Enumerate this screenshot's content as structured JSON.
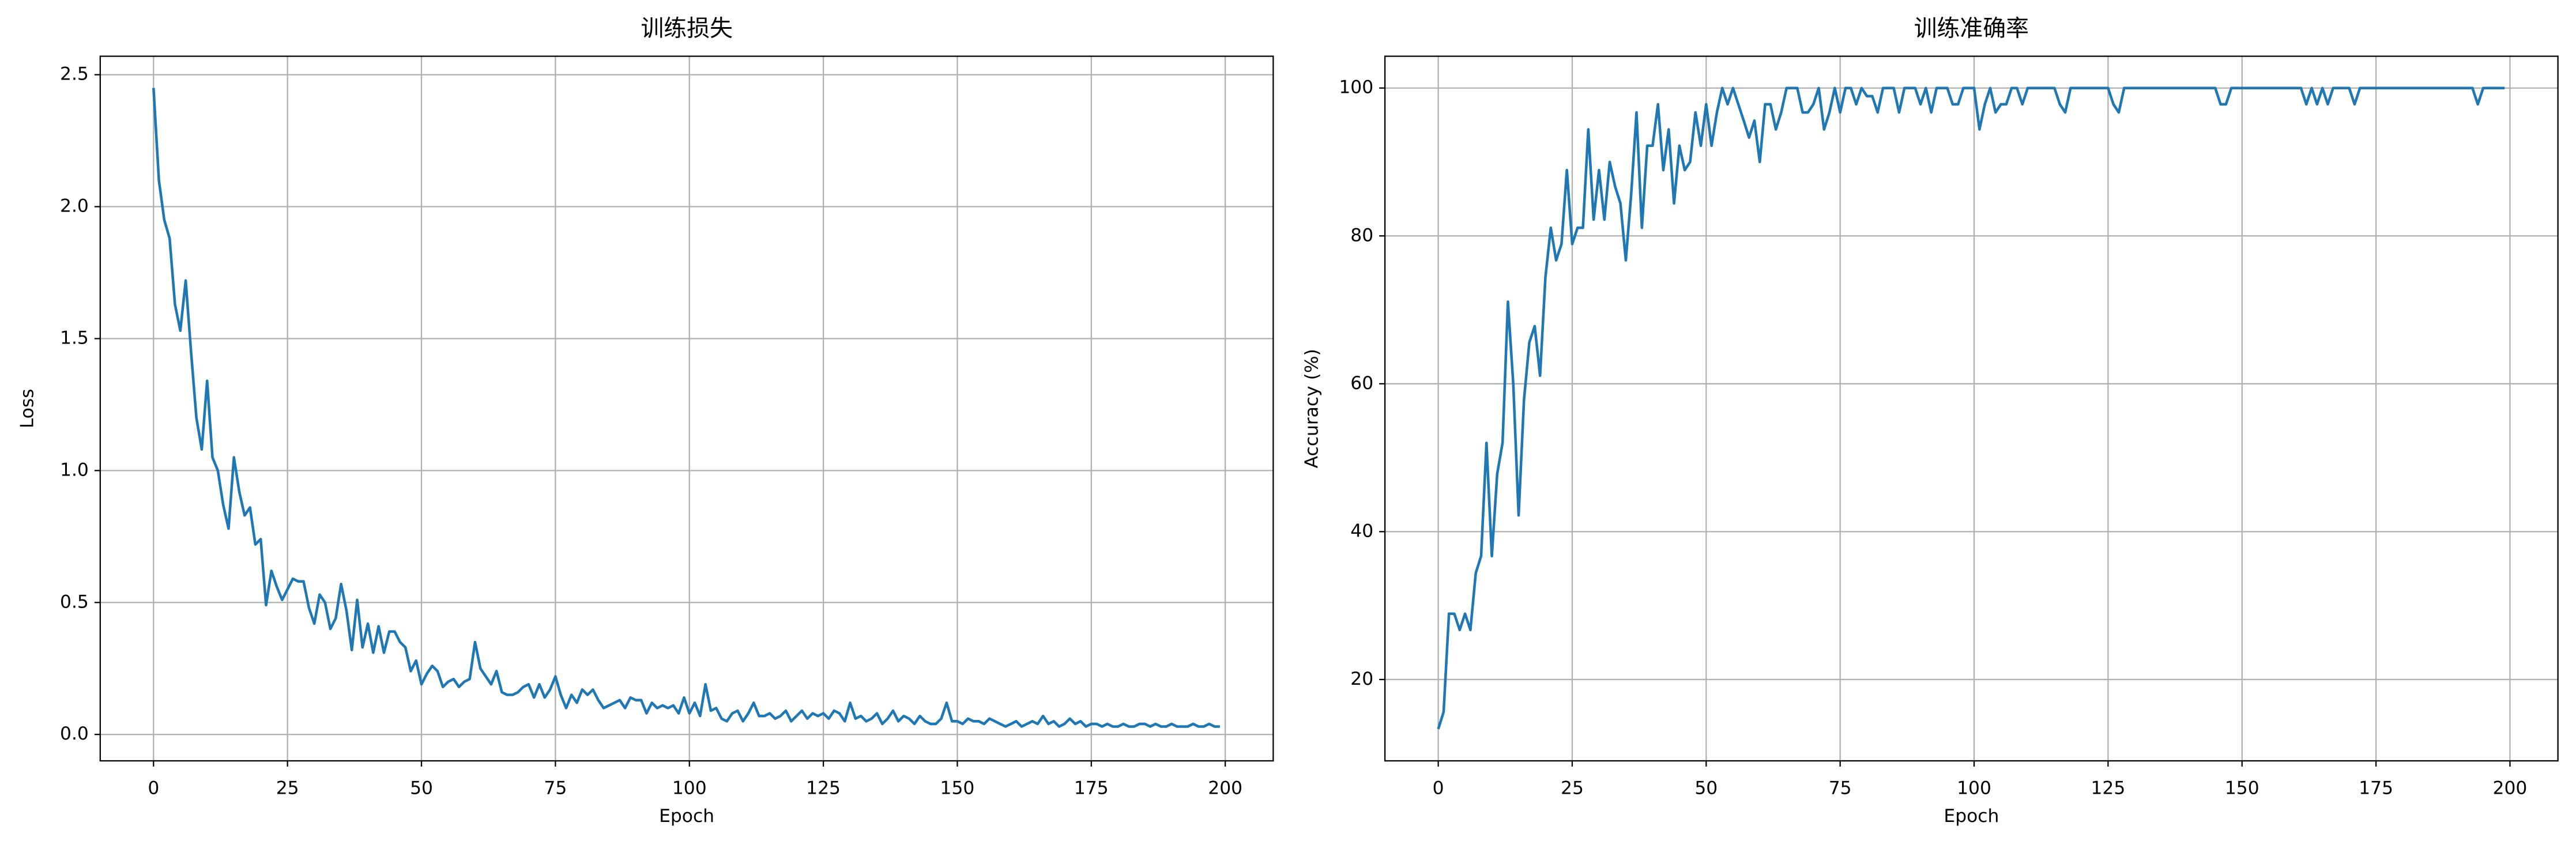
{
  "chart_data": [
    {
      "type": "line",
      "title": "训练损失",
      "xlabel": "Epoch",
      "ylabel": "Loss",
      "color": "#1f77b4",
      "grid": true,
      "x": [
        0,
        1,
        2,
        3,
        4,
        5,
        6,
        7,
        8,
        9,
        10,
        11,
        12,
        13,
        14,
        15,
        16,
        17,
        18,
        19,
        20,
        21,
        22,
        23,
        24,
        25,
        26,
        27,
        28,
        29,
        30,
        31,
        32,
        33,
        34,
        35,
        36,
        37,
        38,
        39,
        40,
        41,
        42,
        43,
        44,
        45,
        46,
        47,
        48,
        49,
        50,
        51,
        52,
        53,
        54,
        55,
        56,
        57,
        58,
        59,
        60,
        61,
        62,
        63,
        64,
        65,
        66,
        67,
        68,
        69,
        70,
        71,
        72,
        73,
        74,
        75,
        76,
        77,
        78,
        79,
        80,
        81,
        82,
        83,
        84,
        85,
        86,
        87,
        88,
        89,
        90,
        91,
        92,
        93,
        94,
        95,
        96,
        97,
        98,
        99,
        100,
        101,
        102,
        103,
        104,
        105,
        106,
        107,
        108,
        109,
        110,
        111,
        112,
        113,
        114,
        115,
        116,
        117,
        118,
        119,
        120,
        121,
        122,
        123,
        124,
        125,
        126,
        127,
        128,
        129,
        130,
        131,
        132,
        133,
        134,
        135,
        136,
        137,
        138,
        139,
        140,
        141,
        142,
        143,
        144,
        145,
        146,
        147,
        148,
        149,
        150,
        151,
        152,
        153,
        154,
        155,
        156,
        157,
        158,
        159,
        160,
        161,
        162,
        163,
        164,
        165,
        166,
        167,
        168,
        169,
        170,
        171,
        172,
        173,
        174,
        175,
        176,
        177,
        178,
        179,
        180,
        181,
        182,
        183,
        184,
        185,
        186,
        187,
        188,
        189,
        190,
        191,
        192,
        193,
        194,
        195,
        196,
        197,
        198,
        199
      ],
      "values": [
        2.45,
        2.1,
        1.95,
        1.88,
        1.63,
        1.53,
        1.72,
        1.45,
        1.2,
        1.08,
        1.34,
        1.05,
        1.0,
        0.87,
        0.78,
        1.05,
        0.92,
        0.83,
        0.86,
        0.72,
        0.74,
        0.49,
        0.62,
        0.56,
        0.51,
        0.55,
        0.59,
        0.58,
        0.58,
        0.48,
        0.42,
        0.53,
        0.5,
        0.4,
        0.44,
        0.57,
        0.47,
        0.32,
        0.51,
        0.33,
        0.42,
        0.31,
        0.41,
        0.31,
        0.39,
        0.39,
        0.35,
        0.33,
        0.24,
        0.28,
        0.19,
        0.23,
        0.26,
        0.24,
        0.18,
        0.2,
        0.21,
        0.18,
        0.2,
        0.21,
        0.35,
        0.25,
        0.22,
        0.19,
        0.24,
        0.16,
        0.15,
        0.15,
        0.16,
        0.18,
        0.19,
        0.14,
        0.19,
        0.14,
        0.17,
        0.22,
        0.15,
        0.1,
        0.15,
        0.12,
        0.17,
        0.15,
        0.17,
        0.13,
        0.1,
        0.11,
        0.12,
        0.13,
        0.1,
        0.14,
        0.13,
        0.13,
        0.08,
        0.12,
        0.1,
        0.11,
        0.1,
        0.11,
        0.08,
        0.14,
        0.08,
        0.12,
        0.07,
        0.19,
        0.09,
        0.1,
        0.06,
        0.05,
        0.08,
        0.09,
        0.05,
        0.08,
        0.12,
        0.07,
        0.07,
        0.08,
        0.06,
        0.07,
        0.09,
        0.05,
        0.07,
        0.09,
        0.06,
        0.08,
        0.07,
        0.08,
        0.06,
        0.09,
        0.08,
        0.05,
        0.12,
        0.06,
        0.07,
        0.05,
        0.06,
        0.08,
        0.04,
        0.06,
        0.09,
        0.05,
        0.07,
        0.06,
        0.04,
        0.07,
        0.05,
        0.04,
        0.04,
        0.06,
        0.12,
        0.05,
        0.05,
        0.04,
        0.06,
        0.05,
        0.05,
        0.04,
        0.06,
        0.05,
        0.04,
        0.03,
        0.04,
        0.05,
        0.03,
        0.04,
        0.05,
        0.04,
        0.07,
        0.04,
        0.05,
        0.03,
        0.04,
        0.06,
        0.04,
        0.05,
        0.03,
        0.04,
        0.04,
        0.03,
        0.04,
        0.03,
        0.03,
        0.04,
        0.03,
        0.03,
        0.04,
        0.04,
        0.03,
        0.04,
        0.03,
        0.03,
        0.04,
        0.03,
        0.03,
        0.03,
        0.04,
        0.03,
        0.03,
        0.04,
        0.03,
        0.03
      ],
      "xlim": [
        -9.95,
        208.95
      ],
      "xticks": [
        0,
        25,
        50,
        75,
        100,
        125,
        150,
        175,
        200
      ],
      "ylim": [
        -0.1,
        2.57
      ],
      "yticks": [
        {
          "value": 0,
          "label": "0.0"
        },
        0.5,
        {
          "value": 1,
          "label": "1.0"
        },
        1.5,
        {
          "value": 2,
          "label": "2.0"
        },
        2.5
      ]
    },
    {
      "type": "line",
      "title": "训练准确率",
      "xlabel": "Epoch",
      "ylabel": "Accuracy (%)",
      "color": "#1f77b4",
      "grid": true,
      "x": [
        0,
        1,
        2,
        3,
        4,
        5,
        6,
        7,
        8,
        9,
        10,
        11,
        12,
        13,
        14,
        15,
        16,
        17,
        18,
        19,
        20,
        21,
        22,
        23,
        24,
        25,
        26,
        27,
        28,
        29,
        30,
        31,
        32,
        33,
        34,
        35,
        36,
        37,
        38,
        39,
        40,
        41,
        42,
        43,
        44,
        45,
        46,
        47,
        48,
        49,
        50,
        51,
        52,
        53,
        54,
        55,
        56,
        57,
        58,
        59,
        60,
        61,
        62,
        63,
        64,
        65,
        66,
        67,
        68,
        69,
        70,
        71,
        72,
        73,
        74,
        75,
        76,
        77,
        78,
        79,
        80,
        81,
        82,
        83,
        84,
        85,
        86,
        87,
        88,
        89,
        90,
        91,
        92,
        93,
        94,
        95,
        96,
        97,
        98,
        99,
        100,
        101,
        102,
        103,
        104,
        105,
        106,
        107,
        108,
        109,
        110,
        111,
        112,
        113,
        114,
        115,
        116,
        117,
        118,
        119,
        120,
        121,
        122,
        123,
        124,
        125,
        126,
        127,
        128,
        129,
        130,
        131,
        132,
        133,
        134,
        135,
        136,
        137,
        138,
        139,
        140,
        141,
        142,
        143,
        144,
        145,
        146,
        147,
        148,
        149,
        150,
        151,
        152,
        153,
        154,
        155,
        156,
        157,
        158,
        159,
        160,
        161,
        162,
        163,
        164,
        165,
        166,
        167,
        168,
        169,
        170,
        171,
        172,
        173,
        174,
        175,
        176,
        177,
        178,
        179,
        180,
        181,
        182,
        183,
        184,
        185,
        186,
        187,
        188,
        189,
        190,
        191,
        192,
        193,
        194,
        195,
        196,
        197,
        198,
        199
      ],
      "values": [
        13.3,
        15.6,
        28.9,
        28.9,
        26.7,
        28.9,
        26.7,
        34.4,
        36.7,
        52,
        36.7,
        47.8,
        52,
        71.1,
        60,
        42.2,
        57.8,
        65.6,
        67.8,
        61.1,
        74.4,
        81.1,
        76.7,
        78.9,
        88.9,
        78.9,
        81.1,
        81.1,
        94.4,
        82.2,
        88.9,
        82.2,
        90,
        86.7,
        84.4,
        76.7,
        85.6,
        96.7,
        81.1,
        92.2,
        92.2,
        97.8,
        88.9,
        94.4,
        84.4,
        92.2,
        88.9,
        90,
        96.7,
        92.2,
        97.8,
        92.2,
        96.7,
        100,
        97.8,
        100,
        97.8,
        95.6,
        93.3,
        95.6,
        90,
        97.8,
        97.8,
        94.4,
        96.7,
        100,
        100,
        100,
        96.7,
        96.7,
        97.8,
        100,
        94.4,
        96.7,
        100,
        96.7,
        100,
        100,
        97.8,
        100,
        98.9,
        98.9,
        96.7,
        100,
        100,
        100,
        96.7,
        100,
        100,
        100,
        97.8,
        100,
        96.7,
        100,
        100,
        100,
        97.8,
        97.8,
        100,
        100,
        100,
        94.4,
        97.8,
        100,
        96.7,
        97.8,
        97.8,
        100,
        100,
        97.8,
        100,
        100,
        100,
        100,
        100,
        100,
        97.8,
        96.7,
        100,
        100,
        100,
        100,
        100,
        100,
        100,
        100,
        97.8,
        96.7,
        100,
        100,
        100,
        100,
        100,
        100,
        100,
        100,
        100,
        100,
        100,
        100,
        100,
        100,
        100,
        100,
        100,
        100,
        97.8,
        97.8,
        100,
        100,
        100,
        100,
        100,
        100,
        100,
        100,
        100,
        100,
        100,
        100,
        100,
        100,
        97.8,
        100,
        97.8,
        100,
        97.8,
        100,
        100,
        100,
        100,
        97.8,
        100,
        100,
        100,
        100,
        100,
        100,
        100,
        100,
        100,
        100,
        100,
        100,
        100,
        100,
        100,
        100,
        100,
        100,
        100,
        100,
        100,
        100,
        97.8,
        100,
        100,
        100,
        100,
        100
      ],
      "xlim": [
        -9.95,
        208.95
      ],
      "xticks": [
        0,
        25,
        50,
        75,
        100,
        125,
        150,
        175,
        200
      ],
      "ylim": [
        9.0,
        104.3
      ],
      "yticks": [
        20,
        40,
        60,
        80,
        100
      ]
    }
  ]
}
